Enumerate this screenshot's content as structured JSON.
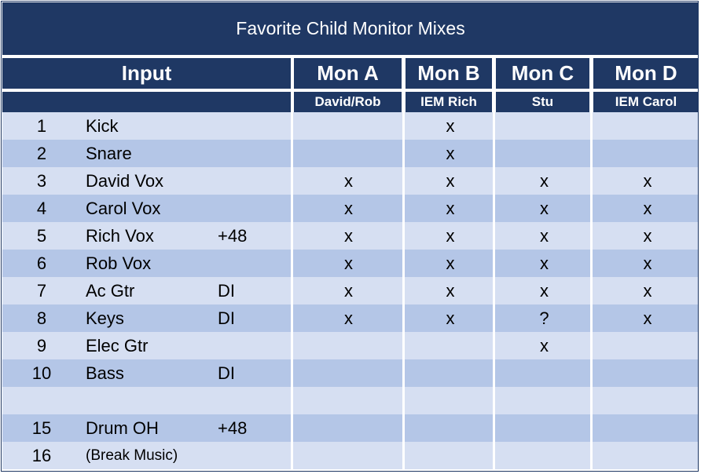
{
  "title": "Favorite Child Monitor Mixes",
  "header": {
    "input": "Input",
    "mons": [
      "Mon A",
      "Mon B",
      "Mon C",
      "Mon D"
    ]
  },
  "subheader": [
    "David/Rob",
    "IEM Rich",
    "Stu",
    "IEM Carol"
  ],
  "rows": [
    {
      "num": "1",
      "name": "Kick",
      "note": "",
      "marks": [
        "",
        "x",
        "",
        ""
      ]
    },
    {
      "num": "2",
      "name": "Snare",
      "note": "",
      "marks": [
        "",
        "x",
        "",
        ""
      ]
    },
    {
      "num": "3",
      "name": "David Vox",
      "note": "",
      "marks": [
        "x",
        "x",
        "x",
        "x"
      ]
    },
    {
      "num": "4",
      "name": "Carol Vox",
      "note": "",
      "marks": [
        "x",
        "x",
        "x",
        "x"
      ]
    },
    {
      "num": "5",
      "name": "Rich Vox",
      "note": "+48",
      "marks": [
        "x",
        "x",
        "x",
        "x"
      ]
    },
    {
      "num": "6",
      "name": "Rob Vox",
      "note": "",
      "marks": [
        "x",
        "x",
        "x",
        "x"
      ]
    },
    {
      "num": "7",
      "name": "Ac Gtr",
      "note": "DI",
      "marks": [
        "x",
        "x",
        "x",
        "x"
      ]
    },
    {
      "num": "8",
      "name": "Keys",
      "note": "DI",
      "marks": [
        "x",
        "x",
        "?",
        "x"
      ]
    },
    {
      "num": "9",
      "name": "Elec Gtr",
      "note": "",
      "marks": [
        "",
        "",
        "x",
        ""
      ]
    },
    {
      "num": "10",
      "name": "Bass",
      "note": "DI",
      "marks": [
        "",
        "",
        "",
        ""
      ]
    },
    {
      "num": "",
      "name": "",
      "note": "",
      "marks": [
        "",
        "",
        "",
        ""
      ]
    },
    {
      "num": "15",
      "name": "Drum OH",
      "note": "+48",
      "marks": [
        "",
        "",
        "",
        ""
      ]
    },
    {
      "num": "16",
      "name": "(Break Music)",
      "note": "",
      "marks": [
        "",
        "",
        "",
        ""
      ]
    }
  ]
}
